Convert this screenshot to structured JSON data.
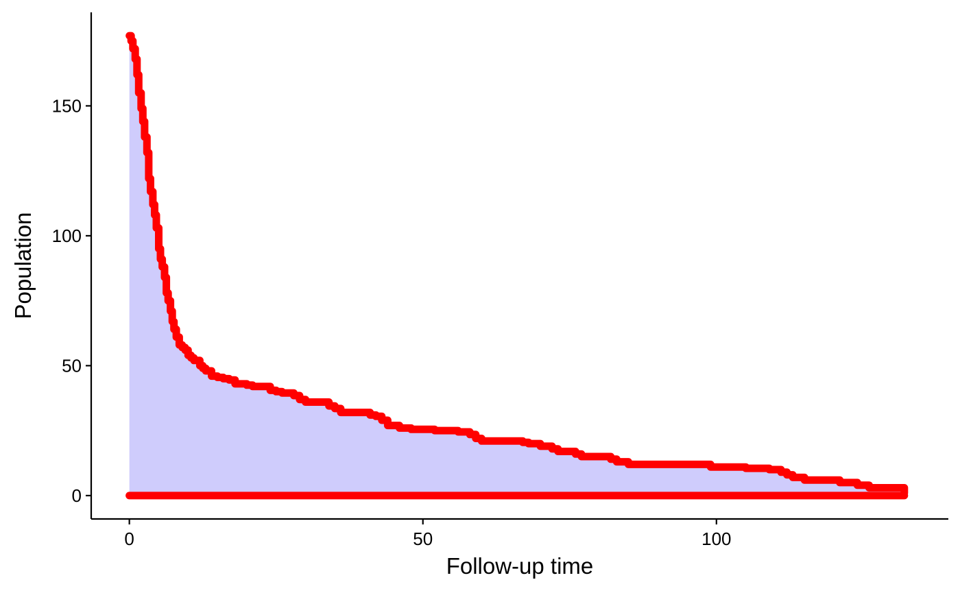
{
  "chart_data": {
    "type": "area",
    "xlabel": "Follow-up time",
    "ylabel": "Population",
    "xlim": [
      -6.5,
      139.5
    ],
    "ylim": [
      -9,
      186
    ],
    "xticks": [
      0,
      50,
      100
    ],
    "yticks": [
      0,
      50,
      100,
      150
    ],
    "grid": false,
    "series": [
      {
        "x": [
          0,
          0.3,
          0.6,
          1.0,
          1.3,
          1.6,
          2.0,
          2.3,
          2.6,
          3.0,
          3.3,
          3.6,
          4.0,
          4.3,
          4.6,
          5.0,
          5.3,
          5.6,
          6.0,
          6.3,
          6.6,
          7.0,
          7.3,
          7.6,
          8.0,
          8.5,
          9.0,
          9.5,
          10.0,
          10.5,
          11.0,
          12.0,
          12.5,
          13.0,
          14.0,
          15.0,
          16.0,
          17.0,
          18.0,
          20.0,
          21.0,
          24.0,
          25.0,
          26.0,
          28.0,
          29.0,
          30.0,
          34.0,
          35.0,
          36.0,
          41.0,
          42.0,
          43.0,
          44.0,
          46.0,
          48.0,
          52.0,
          56.0,
          58.0,
          59.0,
          60.0,
          67.0,
          68.0,
          70.0,
          72.0,
          73.0,
          76.0,
          77.0,
          82.0,
          83.0,
          85.0,
          99.0,
          105.0,
          109.0,
          111.0,
          112.0,
          113.0,
          115.0,
          121.0,
          124.0,
          126.0,
          132.0
        ],
        "values": [
          177,
          175,
          172,
          168,
          162,
          155,
          149,
          144,
          138,
          132,
          122,
          117,
          112,
          108,
          103,
          95,
          91,
          88,
          84,
          78,
          75,
          71,
          67,
          64,
          61,
          58,
          57,
          56,
          54,
          53,
          52,
          50,
          49,
          48,
          46,
          45.5,
          45,
          44.5,
          43,
          42.5,
          42,
          40.5,
          40,
          39.5,
          38.5,
          37,
          36,
          34.5,
          33.5,
          32,
          31,
          30.5,
          29,
          27,
          26,
          25.5,
          25,
          24.5,
          23.5,
          22,
          21,
          20.5,
          20,
          19,
          18,
          17,
          16,
          15,
          14,
          13,
          12,
          11,
          10.5,
          10,
          9,
          8,
          7,
          6,
          5,
          4,
          3,
          1
        ]
      }
    ]
  },
  "colors": {
    "line": "#ff0000",
    "area": "#cfccfc",
    "axis": "#000000"
  }
}
